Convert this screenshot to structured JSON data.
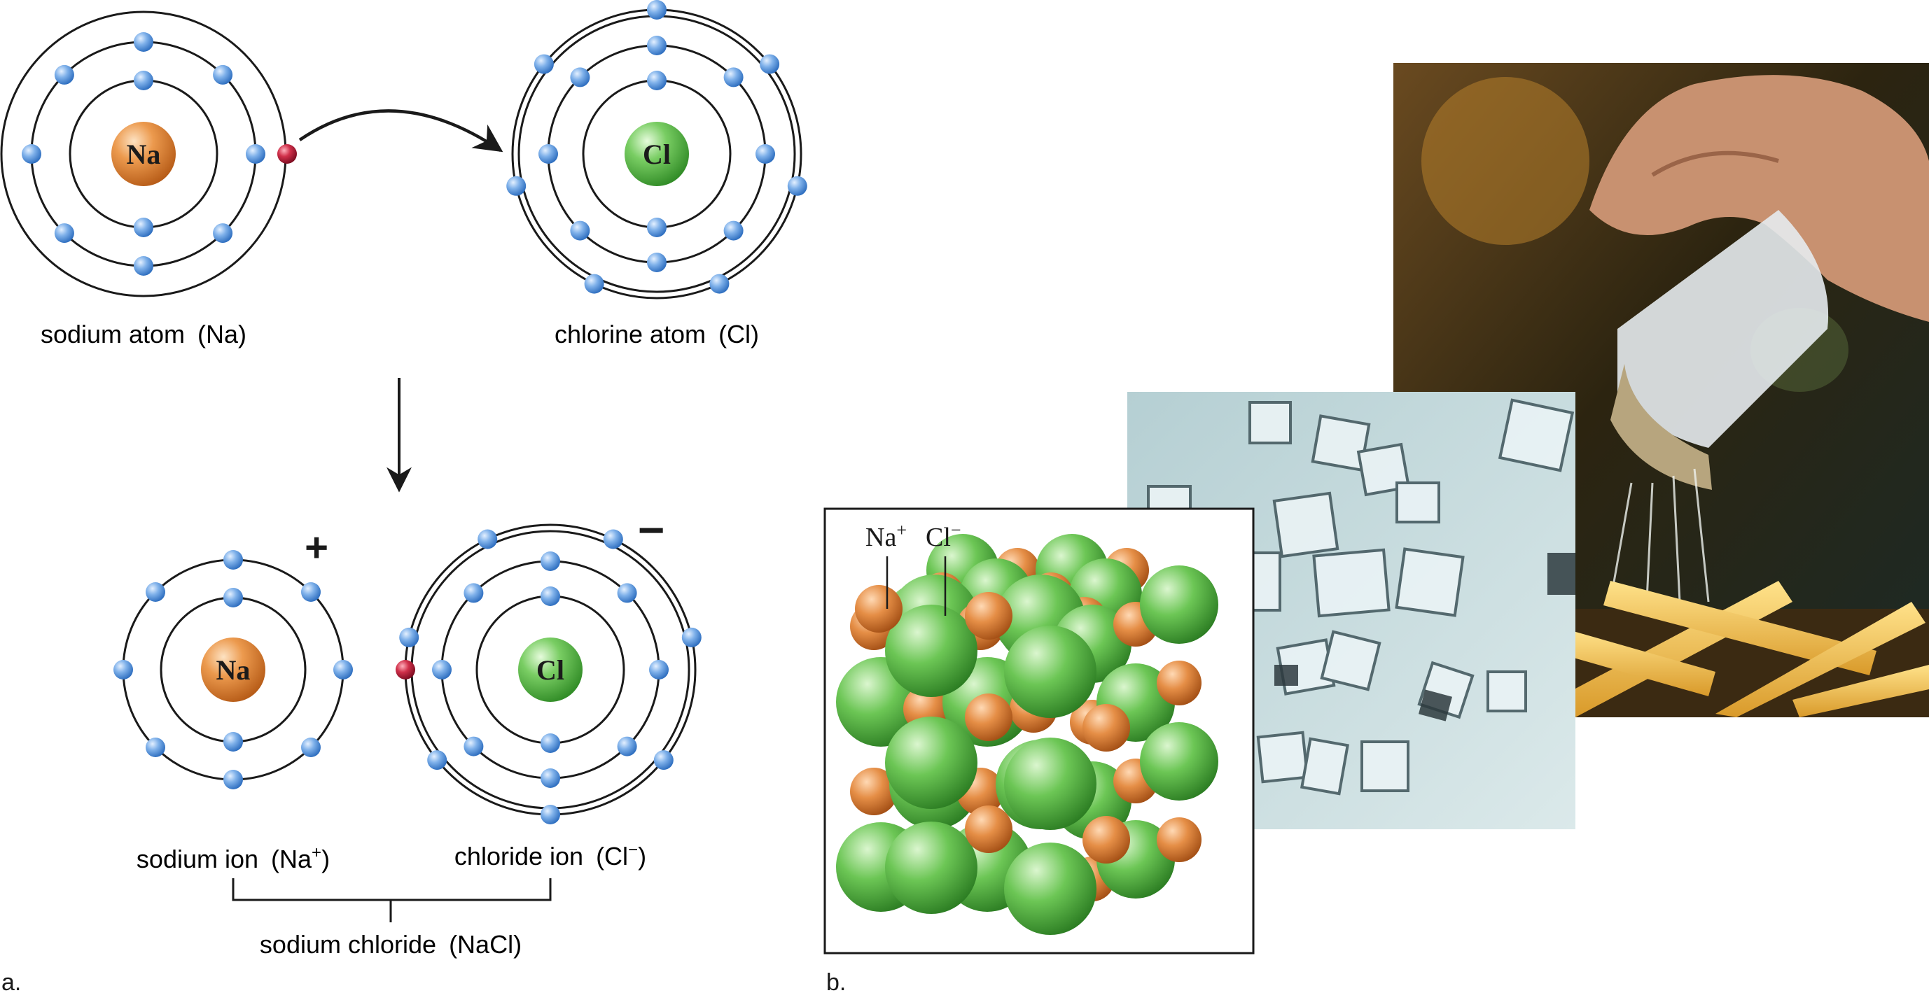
{
  "panel_a": {
    "letter": "a.",
    "sodium_atom": {
      "nucleus": "Na",
      "label": "sodium atom",
      "formula": "(Na)"
    },
    "chlorine_atom": {
      "nucleus": "Cl",
      "label": "chlorine atom",
      "formula": "(Cl)"
    },
    "sodium_ion": {
      "nucleus": "Na",
      "label": "sodium ion",
      "formula": "(Na",
      "sup": "+",
      "close": ")",
      "charge": "+"
    },
    "chloride_ion": {
      "nucleus": "Cl",
      "label": "chloride ion",
      "formula": "(Cl",
      "sup": "−",
      "close": ")",
      "charge": "−"
    },
    "compound": {
      "label": "sodium chloride",
      "formula": "(NaCl)"
    }
  },
  "panel_b": {
    "letter": "b.",
    "lattice_label_na": "Na",
    "lattice_label_na_sup": "+",
    "lattice_label_cl": "Cl",
    "lattice_label_cl_sup": "−"
  },
  "colors": {
    "electron": "#6aa3e0",
    "transferred_electron": "#c8243c",
    "sodium": "#e08a3c",
    "chlorine": "#5cbc4c",
    "shell": "#1a1a1a"
  }
}
